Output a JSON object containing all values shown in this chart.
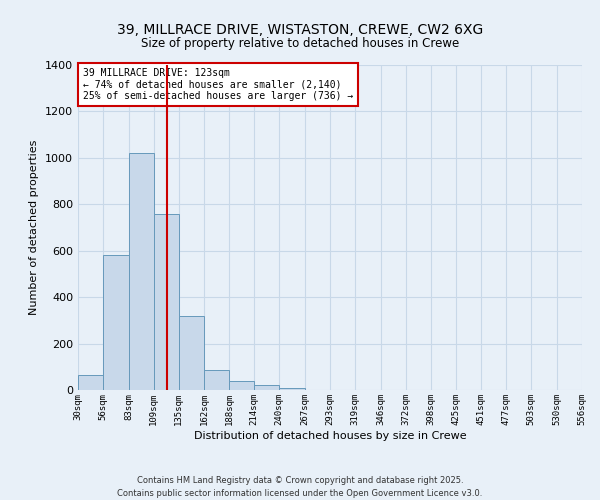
{
  "title1": "39, MILLRACE DRIVE, WISTASTON, CREWE, CW2 6XG",
  "title2": "Size of property relative to detached houses in Crewe",
  "xlabel": "Distribution of detached houses by size in Crewe",
  "ylabel": "Number of detached properties",
  "bar_color": "#c8d8ea",
  "bar_edge_color": "#6699bb",
  "bin_labels": [
    "30sqm",
    "56sqm",
    "83sqm",
    "109sqm",
    "135sqm",
    "162sqm",
    "188sqm",
    "214sqm",
    "240sqm",
    "267sqm",
    "293sqm",
    "319sqm",
    "346sqm",
    "372sqm",
    "398sqm",
    "425sqm",
    "451sqm",
    "477sqm",
    "503sqm",
    "530sqm",
    "556sqm"
  ],
  "counts": [
    65,
    580,
    1020,
    760,
    320,
    85,
    38,
    20,
    8,
    0,
    0,
    0,
    0,
    0,
    0,
    0,
    0,
    0,
    0,
    0
  ],
  "bin_edges": [
    30,
    56,
    83,
    109,
    135,
    162,
    188,
    214,
    240,
    267,
    293,
    319,
    346,
    372,
    398,
    425,
    451,
    477,
    503,
    530,
    556
  ],
  "property_size": 123,
  "vline_color": "#cc0000",
  "annotation_line1": "39 MILLRACE DRIVE: 123sqm",
  "annotation_line2": "← 74% of detached houses are smaller (2,140)",
  "annotation_line3": "25% of semi-detached houses are larger (736) →",
  "annotation_box_color": "#ffffff",
  "annotation_box_edge": "#cc0000",
  "ylim": [
    0,
    1400
  ],
  "yticks": [
    0,
    200,
    400,
    600,
    800,
    1000,
    1200,
    1400
  ],
  "grid_color": "#c8d8e8",
  "background_color": "#e8f0f8",
  "footer1": "Contains HM Land Registry data © Crown copyright and database right 2025.",
  "footer2": "Contains public sector information licensed under the Open Government Licence v3.0."
}
